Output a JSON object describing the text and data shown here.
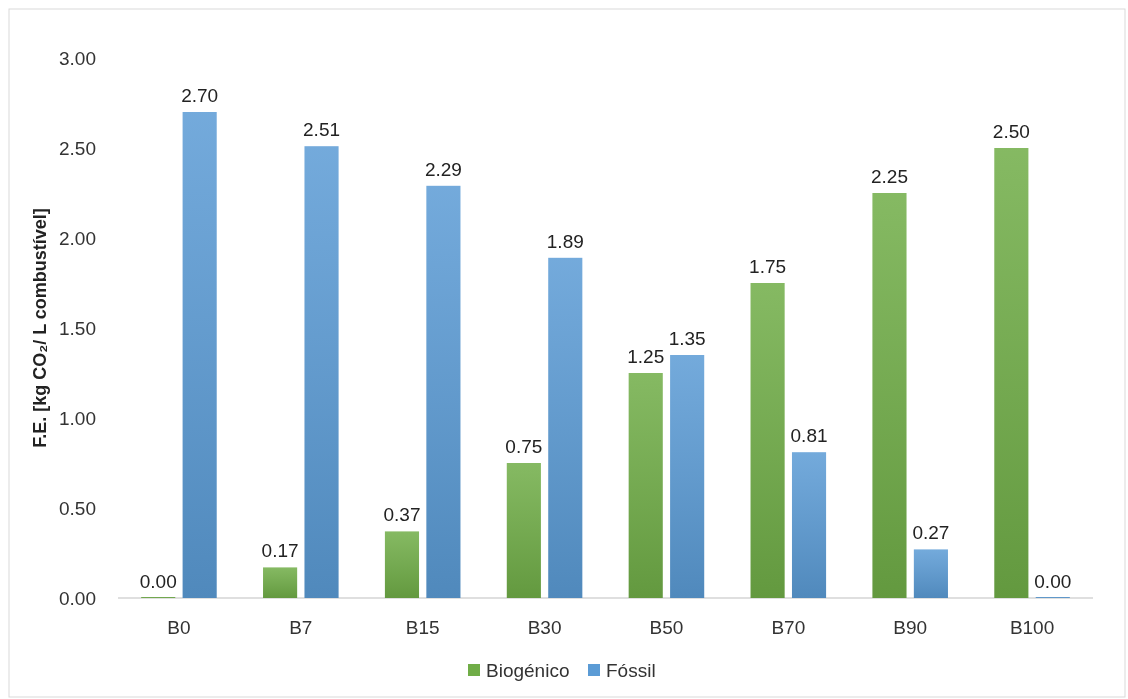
{
  "chart_data": {
    "type": "bar",
    "ylabel": "F.E. [kg CO₂/ L combustível]",
    "categories": [
      "B0",
      "B7",
      "B15",
      "B30",
      "B50",
      "B70",
      "B90",
      "B100"
    ],
    "series": [
      {
        "name": "Biogénico",
        "color": "#70ad47",
        "values": [
          0,
          0.17,
          0.37,
          0.75,
          1.25,
          1.75,
          2.25,
          2.5
        ],
        "value_labels": [
          "0.00",
          "0.17",
          "0.37",
          "0.75",
          "1.25",
          "1.75",
          "2.25",
          "2.50"
        ]
      },
      {
        "name": "Fóssil",
        "color": "#5b9bd5",
        "values": [
          2.7,
          2.51,
          2.29,
          1.89,
          1.35,
          0.81,
          0.27,
          0
        ],
        "value_labels": [
          "2.70",
          "2.51",
          "2.29",
          "1.89",
          "1.35",
          "0.81",
          "0.27",
          "0.00"
        ]
      }
    ],
    "ylim": [
      0,
      3
    ],
    "yticks": [
      {
        "value": 0,
        "label": "0.00"
      },
      {
        "value": 0.5,
        "label": "0.50"
      },
      {
        "value": 1,
        "label": "1.00"
      },
      {
        "value": 1.5,
        "label": "1.50"
      },
      {
        "value": 2,
        "label": "2.00"
      },
      {
        "value": 2.5,
        "label": "2.50"
      },
      {
        "value": 3,
        "label": "3.00"
      }
    ],
    "grid": false,
    "legend": "bottom"
  }
}
